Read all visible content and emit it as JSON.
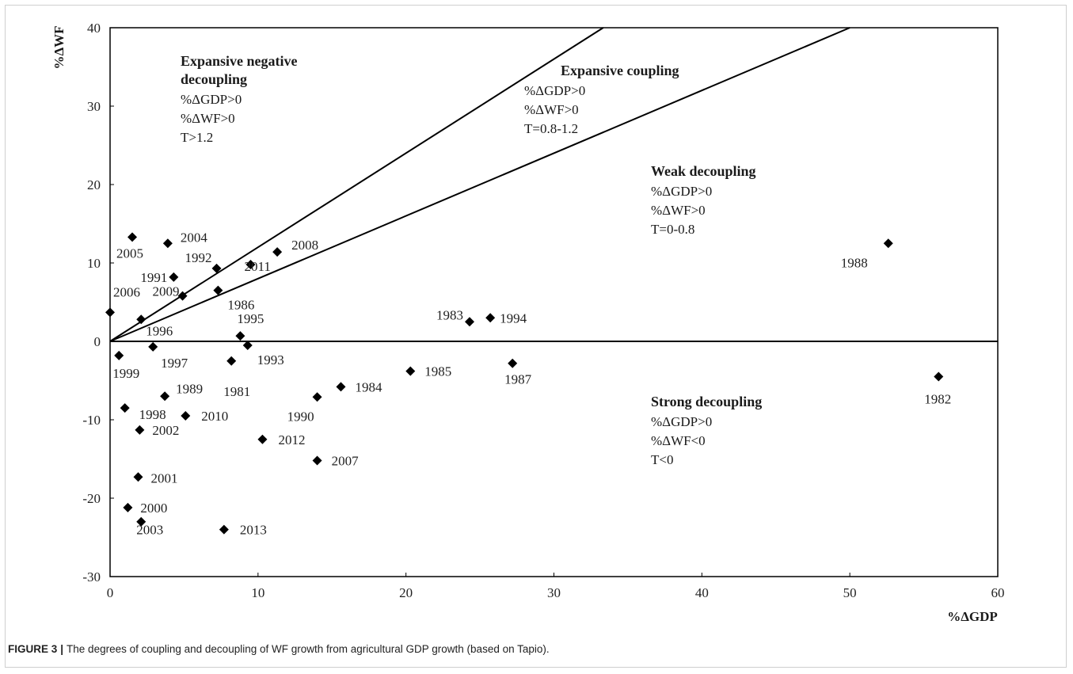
{
  "caption": {
    "figure_label": "FIGURE 3",
    "separator": "|",
    "text": "The degrees of coupling and decoupling of WF growth from agricultural GDP growth (based on Tapio)."
  },
  "chart_data": {
    "type": "scatter",
    "title": "",
    "xlabel": "%ΔGDP",
    "ylabel": "%ΔWF",
    "xlim": [
      0,
      60
    ],
    "ylim": [
      -30,
      40
    ],
    "x_ticks": [
      0,
      10,
      20,
      30,
      40,
      50,
      60
    ],
    "y_ticks": [
      -30,
      -20,
      -10,
      0,
      10,
      20,
      30,
      40
    ],
    "marker": "diamond",
    "marker_color": "#000000",
    "points": [
      {
        "label": "1981",
        "x": 8.2,
        "y": -2.5
      },
      {
        "label": "1982",
        "x": 56.0,
        "y": -4.5
      },
      {
        "label": "1983",
        "x": 24.3,
        "y": 2.5
      },
      {
        "label": "1984",
        "x": 15.6,
        "y": -5.8
      },
      {
        "label": "1985",
        "x": 20.3,
        "y": -3.8
      },
      {
        "label": "1986",
        "x": 7.3,
        "y": 6.5
      },
      {
        "label": "1987",
        "x": 27.2,
        "y": -2.8
      },
      {
        "label": "1988",
        "x": 52.6,
        "y": 12.5
      },
      {
        "label": "1989",
        "x": 3.7,
        "y": -7.0
      },
      {
        "label": "1990",
        "x": 14.0,
        "y": -7.1
      },
      {
        "label": "1991",
        "x": 4.3,
        "y": 8.2
      },
      {
        "label": "1992",
        "x": 7.2,
        "y": 9.3
      },
      {
        "label": "1993",
        "x": 9.3,
        "y": -0.5
      },
      {
        "label": "1994",
        "x": 25.7,
        "y": 3.0
      },
      {
        "label": "1995",
        "x": 8.8,
        "y": 0.7
      },
      {
        "label": "1996",
        "x": 2.1,
        "y": 2.8
      },
      {
        "label": "1997",
        "x": 2.9,
        "y": -0.7
      },
      {
        "label": "1998",
        "x": 1.0,
        "y": -8.5
      },
      {
        "label": "1999",
        "x": 0.6,
        "y": -1.8
      },
      {
        "label": "2000",
        "x": 1.2,
        "y": -21.2
      },
      {
        "label": "2001",
        "x": 1.9,
        "y": -17.3
      },
      {
        "label": "2002",
        "x": 2.0,
        "y": -11.3
      },
      {
        "label": "2003",
        "x": 2.1,
        "y": -23.0
      },
      {
        "label": "2004",
        "x": 3.9,
        "y": 12.5
      },
      {
        "label": "2005",
        "x": 1.5,
        "y": 13.3
      },
      {
        "label": "2006",
        "x": 0.0,
        "y": 3.7
      },
      {
        "label": "2007",
        "x": 14.0,
        "y": -15.2
      },
      {
        "label": "2008",
        "x": 11.3,
        "y": 11.4
      },
      {
        "label": "2009",
        "x": 4.9,
        "y": 5.8
      },
      {
        "label": "2010",
        "x": 5.1,
        "y": -9.5
      },
      {
        "label": "2011",
        "x": 9.5,
        "y": 9.8
      },
      {
        "label": "2012",
        "x": 10.3,
        "y": -12.5
      },
      {
        "label": "2013",
        "x": 7.7,
        "y": -24.0
      }
    ],
    "reference_lines": [
      {
        "slope": 1.2
      },
      {
        "slope": 0.8
      }
    ],
    "regions": [
      {
        "title_lines": [
          "Expansive negative",
          "decoupling"
        ],
        "lines": [
          "%ΔGDP>0",
          "%ΔWF>0",
          "T>1.2"
        ]
      },
      {
        "title_lines": [
          "Expansive coupling"
        ],
        "lines": [
          "%ΔGDP>0",
          "%ΔWF>0",
          "T=0.8-1.2"
        ]
      },
      {
        "title_lines": [
          "Weak decoupling"
        ],
        "lines": [
          "%ΔGDP>0",
          "%ΔWF>0",
          "T=0-0.8"
        ]
      },
      {
        "title_lines": [
          "Strong decoupling"
        ],
        "lines": [
          "%ΔGDP>0",
          "%ΔWF<0",
          "T<0"
        ]
      }
    ],
    "grid": false
  }
}
